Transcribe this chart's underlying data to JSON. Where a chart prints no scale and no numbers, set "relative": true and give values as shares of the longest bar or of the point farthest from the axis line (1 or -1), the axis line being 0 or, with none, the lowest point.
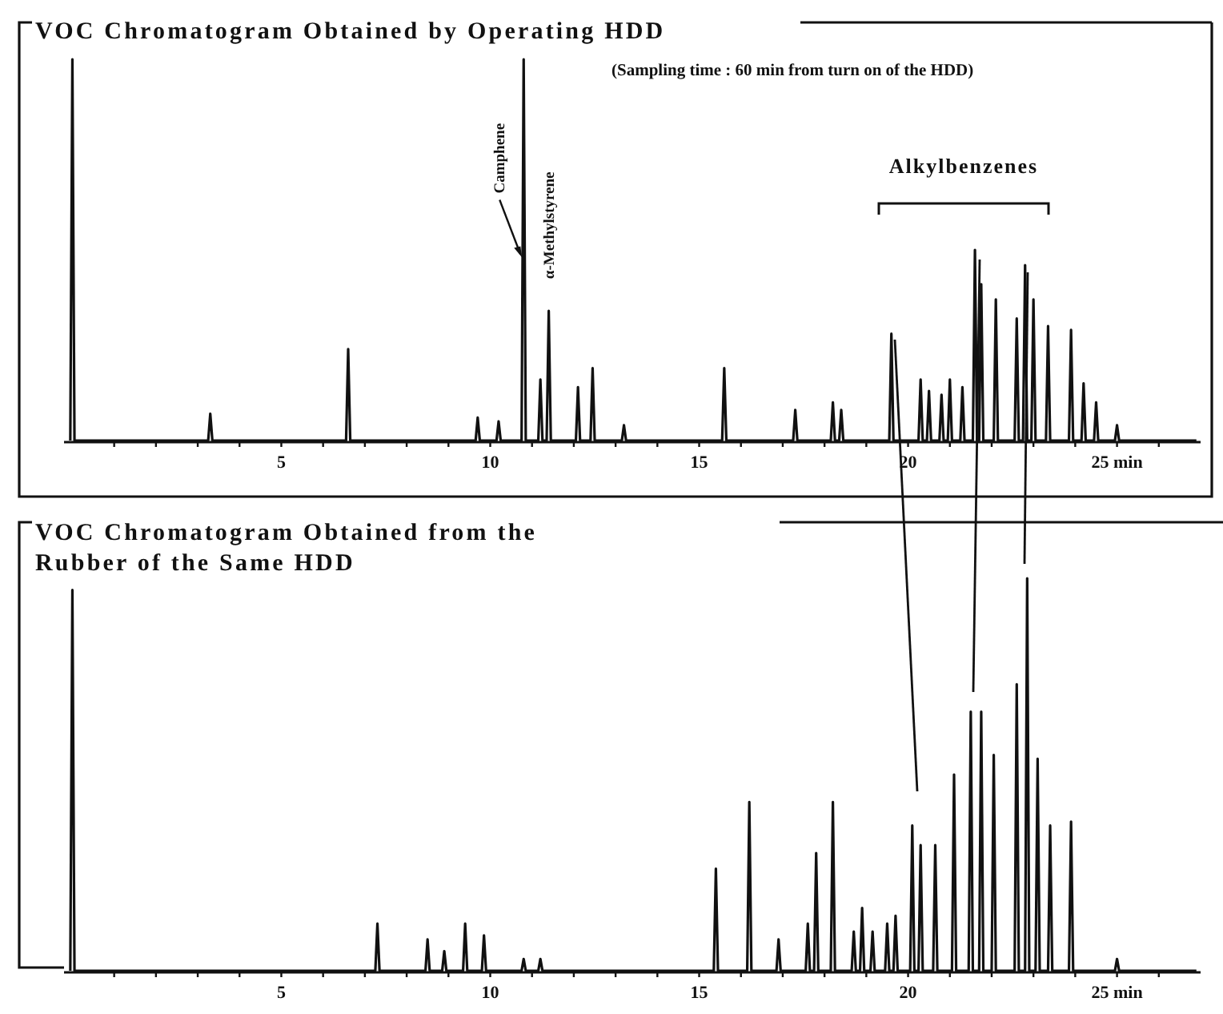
{
  "chart_data": [
    {
      "type": "line",
      "title": "VOC Chromatogram Obtained by Operating HDD",
      "subtitle": "(Sampling time : 60 min from turn on of the HDD)",
      "relative": true,
      "xlim": [
        -0.2,
        27
      ],
      "xticks": [
        {
          "value": 1,
          "label": null
        },
        {
          "value": 2,
          "label": null
        },
        {
          "value": 3,
          "label": null
        },
        {
          "value": 4,
          "label": null
        },
        5,
        {
          "value": 6,
          "label": null
        },
        {
          "value": 7,
          "label": null
        },
        {
          "value": 8,
          "label": null
        },
        {
          "value": 9,
          "label": null
        },
        10,
        {
          "value": 11,
          "label": null
        },
        {
          "value": 12,
          "label": null
        },
        {
          "value": 13,
          "label": null
        },
        {
          "value": 14,
          "label": null
        },
        15,
        {
          "value": 16,
          "label": null
        },
        {
          "value": 17,
          "label": null
        },
        {
          "value": 18,
          "label": null
        },
        {
          "value": 19,
          "label": null
        },
        20,
        {
          "value": 21,
          "label": null
        },
        {
          "value": 22,
          "label": null
        },
        {
          "value": 23,
          "label": null
        },
        {
          "value": 24,
          "label": null
        },
        {
          "value": 25,
          "label": "25 min"
        },
        {
          "value": 26,
          "label": null
        }
      ],
      "annotations": [
        {
          "text": "Camphene",
          "x": 10.8,
          "y": 0.48
        },
        {
          "text": "α-Methylstyrene",
          "x": 11.4,
          "y": 0.34
        },
        "Alkylbenzenes"
      ],
      "series": [
        {
          "color": "#111111",
          "x": [
            -0.05,
            0,
            0.05,
            3.25,
            3.3,
            3.35,
            6.55,
            6.6,
            6.65,
            9.65,
            9.7,
            9.75,
            10.15,
            10.2,
            10.25,
            10.75,
            10.8,
            10.85,
            11.15,
            11.2,
            11.25,
            11.35,
            11.4,
            11.45,
            12.05,
            12.1,
            12.15,
            12.4,
            12.45,
            12.5,
            13.15,
            13.2,
            13.25,
            15.55,
            15.6,
            15.65,
            17.25,
            17.3,
            17.35,
            18.15,
            18.2,
            18.25,
            18.35,
            18.4,
            18.45,
            19.55,
            19.6,
            19.65,
            20.25,
            20.3,
            20.35,
            20.45,
            20.5,
            20.55,
            20.75,
            20.8,
            20.85,
            20.95,
            21.0,
            21.05,
            21.25,
            21.3,
            21.35,
            21.55,
            21.6,
            21.65,
            21.7,
            21.75,
            21.8,
            22.05,
            22.1,
            22.15,
            22.55,
            22.6,
            22.65,
            22.75,
            22.8,
            22.85,
            22.95,
            23.0,
            23.05,
            23.3,
            23.35,
            23.4,
            23.85,
            23.9,
            23.95,
            24.15,
            24.2,
            24.25,
            24.45,
            24.5,
            24.55,
            24.95,
            25.0,
            25.05,
            26.9
          ],
          "values": [
            0,
            1,
            0,
            0,
            0.07,
            0,
            0,
            0.24,
            0,
            0,
            0.06,
            0,
            0,
            0.05,
            0,
            0,
            1,
            0,
            0,
            0.16,
            0,
            0,
            0.34,
            0,
            0,
            0.14,
            0,
            0,
            0.19,
            0,
            0,
            0.04,
            0,
            0,
            0.19,
            0,
            0,
            0.08,
            0,
            0,
            0.1,
            0,
            0,
            0.08,
            0,
            0,
            0.28,
            0,
            0,
            0.16,
            0,
            0,
            0.13,
            0,
            0,
            0.12,
            0,
            0,
            0.16,
            0,
            0,
            0.14,
            0,
            0,
            0.5,
            0,
            0,
            0.41,
            0,
            0,
            0.37,
            0,
            0,
            0.32,
            0,
            0,
            0.46,
            0,
            0,
            0.37,
            0,
            0,
            0.3,
            0,
            0,
            0.29,
            0,
            0,
            0.15,
            0,
            0,
            0.1,
            0,
            0,
            0.04,
            0,
            0
          ]
        }
      ]
    },
    {
      "type": "line",
      "title": "VOC Chromatogram Obtained from the\nRubber of the Same HDD",
      "relative": true,
      "xlim": [
        -0.2,
        27
      ],
      "xticks": [
        {
          "value": 1,
          "label": null
        },
        {
          "value": 2,
          "label": null
        },
        {
          "value": 3,
          "label": null
        },
        {
          "value": 4,
          "label": null
        },
        5,
        {
          "value": 6,
          "label": null
        },
        {
          "value": 7,
          "label": null
        },
        {
          "value": 8,
          "label": null
        },
        {
          "value": 9,
          "label": null
        },
        10,
        {
          "value": 11,
          "label": null
        },
        {
          "value": 12,
          "label": null
        },
        {
          "value": 13,
          "label": null
        },
        {
          "value": 14,
          "label": null
        },
        15,
        {
          "value": 16,
          "label": null
        },
        {
          "value": 17,
          "label": null
        },
        {
          "value": 18,
          "label": null
        },
        {
          "value": 19,
          "label": null
        },
        20,
        {
          "value": 21,
          "label": null
        },
        {
          "value": 22,
          "label": null
        },
        {
          "value": 23,
          "label": null
        },
        {
          "value": 24,
          "label": null
        },
        {
          "value": 25,
          "label": "25 min"
        },
        {
          "value": 26,
          "label": null
        }
      ],
      "series": [
        {
          "color": "#111111",
          "x": [
            -0.05,
            0,
            0.05,
            7.25,
            7.3,
            7.35,
            8.45,
            8.5,
            8.55,
            8.85,
            8.9,
            8.95,
            9.35,
            9.4,
            9.45,
            9.8,
            9.85,
            9.9,
            10.75,
            10.8,
            10.85,
            11.15,
            11.2,
            11.25,
            15.35,
            15.4,
            15.45,
            16.15,
            16.2,
            16.25,
            16.85,
            16.9,
            16.95,
            17.55,
            17.6,
            17.65,
            17.75,
            17.8,
            17.85,
            18.15,
            18.2,
            18.25,
            18.65,
            18.7,
            18.75,
            18.85,
            18.9,
            18.95,
            19.1,
            19.15,
            19.2,
            19.45,
            19.5,
            19.55,
            19.65,
            19.7,
            19.75,
            20.05,
            20.1,
            20.15,
            20.25,
            20.3,
            20.35,
            20.6,
            20.65,
            20.7,
            21.05,
            21.1,
            21.15,
            21.45,
            21.5,
            21.55,
            21.7,
            21.75,
            21.8,
            22.0,
            22.05,
            22.1,
            22.55,
            22.6,
            22.65,
            22.8,
            22.85,
            22.9,
            23.05,
            23.1,
            23.15,
            23.35,
            23.4,
            23.45,
            23.85,
            23.9,
            23.95,
            24.95,
            25.0,
            25.05,
            26.9
          ],
          "values": [
            0,
            0.97,
            0,
            0,
            0.12,
            0,
            0,
            0.08,
            0,
            0,
            0.05,
            0,
            0,
            0.12,
            0,
            0,
            0.09,
            0,
            0,
            0.03,
            0,
            0,
            0.03,
            0,
            0,
            0.26,
            0,
            0,
            0.43,
            0,
            0,
            0.08,
            0,
            0,
            0.12,
            0,
            0,
            0.3,
            0,
            0,
            0.43,
            0,
            0,
            0.1,
            0,
            0,
            0.16,
            0,
            0,
            0.1,
            0,
            0,
            0.12,
            0,
            0,
            0.14,
            0,
            0,
            0.37,
            0,
            0,
            0.32,
            0,
            0,
            0.32,
            0,
            0,
            0.5,
            0,
            0,
            0.66,
            0,
            0,
            0.66,
            0,
            0,
            0.55,
            0,
            0,
            0.73,
            0,
            0,
            1,
            0,
            0,
            0.54,
            0,
            0,
            0.37,
            0,
            0,
            0.38,
            0,
            0,
            0.03,
            0,
            0
          ]
        }
      ]
    }
  ]
}
